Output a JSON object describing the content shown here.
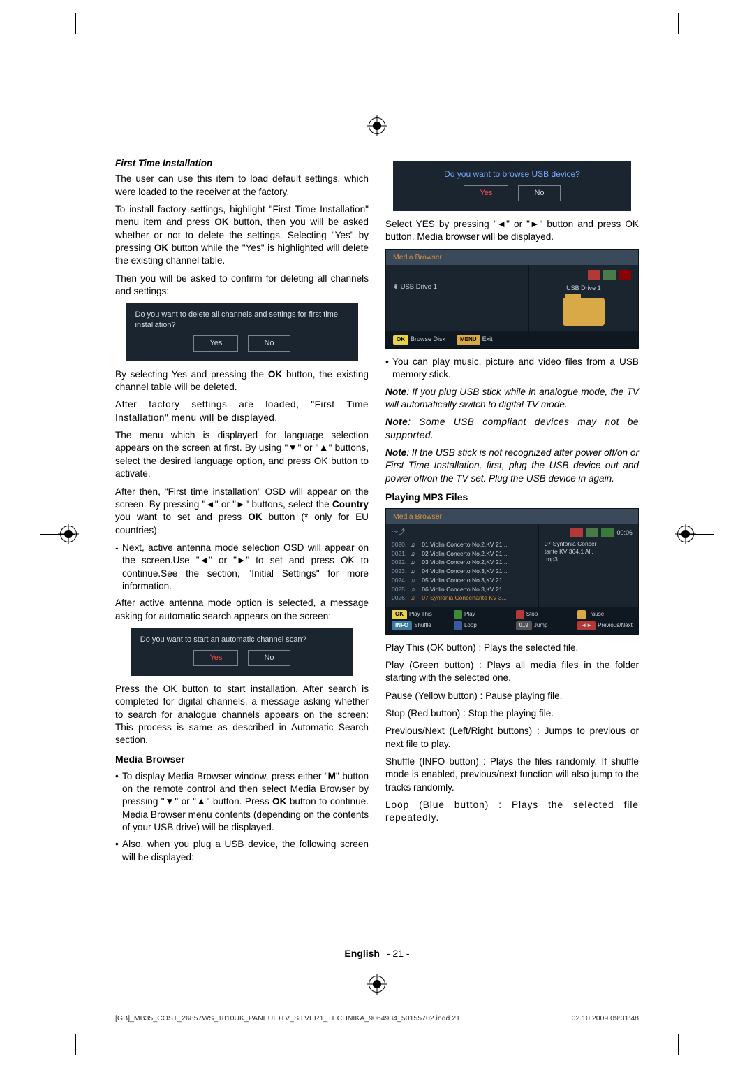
{
  "left": {
    "h4": "First Time Installation",
    "p1": "The user can use this item to load default settings, which were loaded to the receiver at the factory.",
    "p2a": "To install factory settings, highlight \"First Time Installation\" menu item and press ",
    "p2b": " button, then you will be asked whether or not to delete the settings. Selecting \"Yes\" by pressing ",
    "p2c": " button while the \"Yes\" is highlighted will delete the existing channel table.",
    "p3": "Then you will be asked to confirm for deleting all channels and settings:",
    "dialog1": {
      "text": "Do you want to delete all channels and settings for first time installation?",
      "yes": "Yes",
      "no": "No"
    },
    "p4a": "By selecting Yes and pressing the ",
    "p4b": " button, the existing channel table will be deleted.",
    "p5": "After factory settings are loaded, \"First Time Installation\" menu will be displayed.",
    "p6": "The menu which is displayed for language selection appears on the screen at first. By using  \"▼\" or \"▲\" buttons, select the desired language option, and press OK button to activate.",
    "p7a": "After then, \"First time installation\" OSD will appear on the screen. By pressing \"◄\" or \"►\" buttons, select the ",
    "p7b": " you want to set and press ",
    "p7c": " button (* only for EU countries).",
    "li1": "Next, active antenna mode selection OSD will appear on the screen.Use \"◄\" or \"►\" to set and press OK to continue.See the section, \"Initial Settings\" for more information.",
    "p8": "After active antenna mode option is selected, a message asking for automatic search appears on the screen:",
    "dialog2": {
      "text": "Do you want to start an automatic channel scan?",
      "yes": "Yes",
      "no": "No"
    },
    "p9": "Press the OK button to start installation. After search is completed for digital channels, a message asking whether to search for analogue channels appears on the screen: This process is same as described in Automatic Search section.",
    "h3": "Media Browser",
    "li2a": "To display Media Browser window, press either \"",
    "li2b": "\" button on the remote control and then select Media Browser by pressing \"▼\" or \"▲\" button. Press ",
    "li2c": " button to continue. Media Browser menu contents (depending on the contents of your USB drive) will be displayed.",
    "li3": "Also, when you plug a USB device, the following screen will be displayed:"
  },
  "right": {
    "dialog3": {
      "title": "Do you want to browse USB device?",
      "yes": "Yes",
      "no": "No"
    },
    "p1": "Select YES by pressing \"◄\" or \"►\" button and press OK button. Media browser will be displayed.",
    "mb1": {
      "title": "Media Browser",
      "drive_left": "USB Drive 1",
      "drive_right": "USB Drive 1",
      "ok": "OK",
      "browse": "Browse Disk",
      "menu": "MENU",
      "exit": "Exit"
    },
    "li1": "You can play music, picture and video files from a USB memory stick.",
    "note1": "Note: If you plug USB stick while in analogue mode, the TV will automatically switch to digital TV mode.",
    "note2": "Note: Some USB compliant devices may not be supported.",
    "note3": "Note: If the USB stick is not recognized after power off/on or First Time Installation, first, plug the USB device out and power off/on the TV set. Plug the USB device in again.",
    "h3": "Playing MP3 Files",
    "mb2": {
      "title": "Media Browser",
      "time": "00:06",
      "rows": [
        {
          "idx": "0020.",
          "name": "01 Violin Concerto No.2,KV 21..."
        },
        {
          "idx": "0021.",
          "name": "02 Violin Concerto No.2,KV 21..."
        },
        {
          "idx": "0022.",
          "name": "03 Violin Concerto No.2,KV 21..."
        },
        {
          "idx": "0023.",
          "name": "04 Violin Concerto No.3,KV 21..."
        },
        {
          "idx": "0024.",
          "name": "05 Violin Concerto No.3,KV 21..."
        },
        {
          "idx": "0025.",
          "name": "06 Violin Concerto No.3,KV 21..."
        },
        {
          "idx": "0026.",
          "name": "07 Synfonia Concertante KV 3..."
        }
      ],
      "info_r1": "07 Synfonia Concer",
      "info_r2": "tante KV 364,1 All.",
      "info_r3": ".mp3",
      "f": {
        "playthis": "Play This",
        "play": "Play",
        "stop": "Stop",
        "pause": "Pause",
        "shuffle": "Shuffle",
        "loop": "Loop",
        "jump": "Jump",
        "prevnext": "Previous/Next"
      }
    },
    "p2": "Play This (OK button) : Plays the selected file.",
    "p3": "Play (Green button) : Plays all media files in the folder starting with the selected one.",
    "p4": "Pause (Yellow button) : Pause playing file.",
    "p5": "Stop (Red button) : Stop the playing file.",
    "p6": "Previous/Next (Left/Right buttons) : Jumps to previous or next file to play.",
    "p7": "Shuffle (INFO button) : Plays the files randomly. If shuffle mode is enabled, previous/next function will also jump to the tracks randomly.",
    "p8": "Loop (Blue button) : Plays the selected file repeatedly."
  },
  "footer": {
    "lang": "English",
    "page": "- 21 -"
  },
  "print": {
    "file": "[GB]_MB35_COST_26857WS_1810UK_PANEUIDTV_SILVER1_TECHNIKA_9064934_50155702.indd   21",
    "date": "02.10.2009   09:31:48"
  },
  "bold": {
    "ok": "OK",
    "country": "Country",
    "m": "M",
    "notePrefix": "Note"
  }
}
